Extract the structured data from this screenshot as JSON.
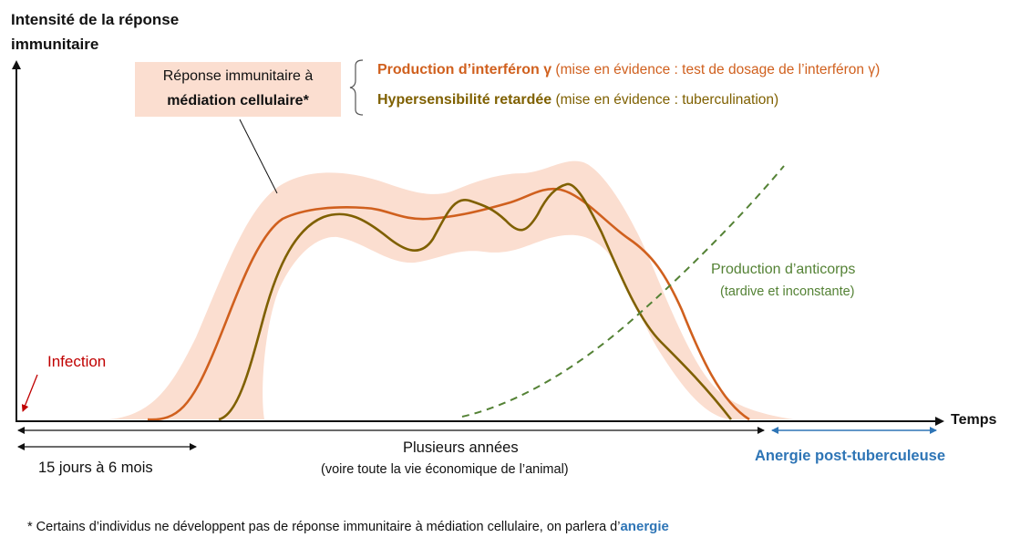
{
  "y_axis_label_line1": "Intensité de la réponse",
  "y_axis_label_line2": "immunitaire",
  "x_axis_label": "Temps",
  "cmi_box": {
    "line1": "Réponse immunitaire à",
    "line2": "médiation cellulaire*"
  },
  "legend": [
    {
      "bold": "Production d’interféron γ",
      "detail": " (mise en évidence : test de dosage de l’interféron γ)",
      "color": "#d0601e"
    },
    {
      "bold": "Hypersensibilité retardée",
      "detail": " (mise en évidence : tuberculination)",
      "color": "#7f6000"
    }
  ],
  "antibody": {
    "line1": "Production d’anticorps",
    "line2": "(tardive et inconstante)",
    "color": "#548235"
  },
  "infection_label": "Infection",
  "timeline": {
    "early_label": "15 jours à 6 mois",
    "years_line1": "Plusieurs années",
    "years_line2": "(voire toute la vie économique de l’animal)",
    "anergy_label": "Anergie post-tuberculeuse"
  },
  "footnote": {
    "text": "* Certains d’individus ne développent pas de réponse immunitaire à médiation cellulaire, on parlera d’",
    "highlight": "anergie"
  },
  "colors": {
    "band": "#fbded0",
    "interferon": "#d0601e",
    "hypersensitivity": "#7f6000",
    "antibody": "#548235",
    "infection": "#c00000",
    "anergy": "#2e75b6"
  }
}
